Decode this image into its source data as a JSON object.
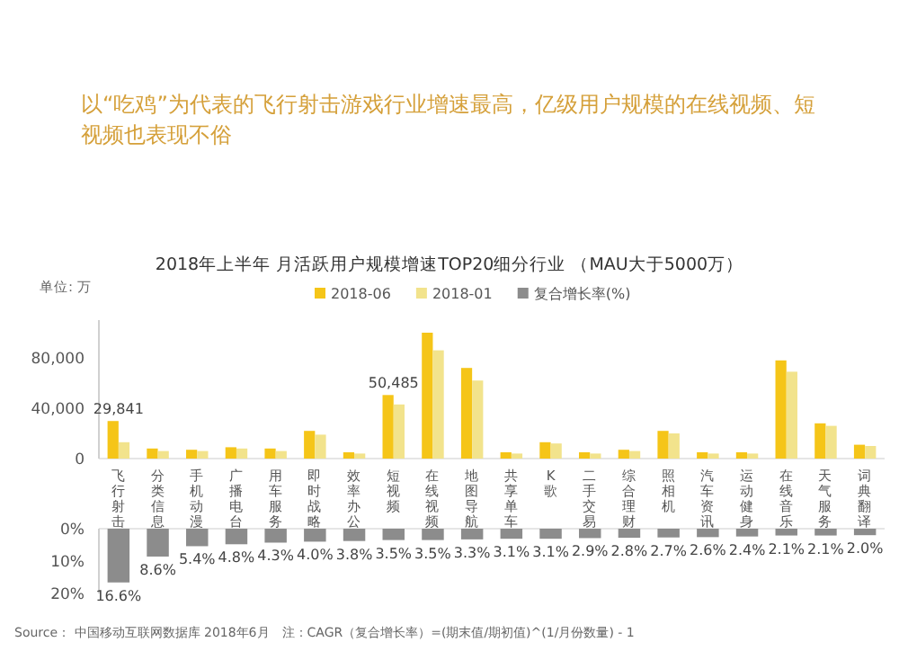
{
  "chart_data": [
    {
      "type": "bar",
      "title": "2018年上半年 月活跃用户规模增速TOP20细分行业 （MAU大于5000万）",
      "annotations": [
        "以“吃鸡”为代表的飞行射击游戏行业增速最高，亿级用户规模的在线视频、短视频也表现不俗",
        "单位: 万"
      ],
      "categories": [
        "飞行射击",
        "分类信息",
        "手机动漫",
        "广播电台",
        "用车服务",
        "即时战略",
        "效率办公",
        "短视频",
        "在线视频",
        "地图导航",
        "共享单车",
        "K歌",
        "二手交易",
        "综合理财",
        "照相机",
        "汽车资讯",
        "运动健身",
        "在线音乐",
        "天气服务",
        "词典翻译"
      ],
      "series": [
        {
          "name": "2018-06",
          "color": "#f5c518",
          "values": [
            29841,
            8000,
            7000,
            9000,
            8000,
            22000,
            5000,
            50485,
            100000,
            72000,
            5000,
            13000,
            5000,
            7000,
            22000,
            5000,
            5000,
            78000,
            28000,
            11000
          ],
          "value_labels": [
            "29,841",
            null,
            null,
            null,
            null,
            null,
            null,
            "50,485",
            null,
            null,
            null,
            null,
            null,
            null,
            null,
            null,
            null,
            null,
            null,
            null
          ]
        },
        {
          "name": "2018-01",
          "color": "#f2e38c",
          "values": [
            13000,
            6000,
            6000,
            8000,
            6000,
            19000,
            4000,
            43000,
            86000,
            62000,
            4000,
            12000,
            4000,
            6000,
            20000,
            4000,
            4000,
            69000,
            26000,
            10000
          ]
        }
      ],
      "ylim": [
        0,
        110000
      ],
      "yticks": [
        0,
        {
          "value": 40000,
          "label": "40,000"
        },
        {
          "value": 80000,
          "label": "80,000"
        }
      ],
      "legend": "top"
    },
    {
      "type": "bar",
      "annotations": [
        "Source： 中国移动互联网数据库 2018年6月　注：CAGR（复合增长率）=(期末值/期初值)^(1/月份数量) - 1"
      ],
      "categories": [
        null,
        null,
        null,
        null,
        null,
        null,
        null,
        null,
        null,
        null,
        null,
        null,
        null,
        null,
        null,
        null,
        null,
        null,
        null,
        null
      ],
      "series": [
        {
          "name": "复合增长率(%)",
          "color": "#8c8c8c",
          "values": [
            16.6,
            8.6,
            5.4,
            4.8,
            4.3,
            4.0,
            3.8,
            3.5,
            3.5,
            3.3,
            3.1,
            3.1,
            2.9,
            2.8,
            2.7,
            2.6,
            2.4,
            2.1,
            2.1,
            2.0
          ],
          "value_labels": [
            "16.6%",
            "8.6%",
            "5.4%",
            "4.8%",
            "4.3%",
            "4.0%",
            "3.8%",
            "3.5%",
            "3.5%",
            "3.3%",
            "3.1%",
            "3.1%",
            "2.9%",
            "2.8%",
            "2.7%",
            "2.6%",
            "2.4%",
            "2.1%",
            "2.1%",
            "2.0%"
          ]
        }
      ],
      "ylim": [
        20,
        0
      ],
      "yticks": [
        {
          "value": 0,
          "label": "0%"
        },
        {
          "value": 10,
          "label": "10%"
        },
        {
          "value": 20,
          "label": "20%"
        }
      ],
      "legend": "top"
    }
  ]
}
